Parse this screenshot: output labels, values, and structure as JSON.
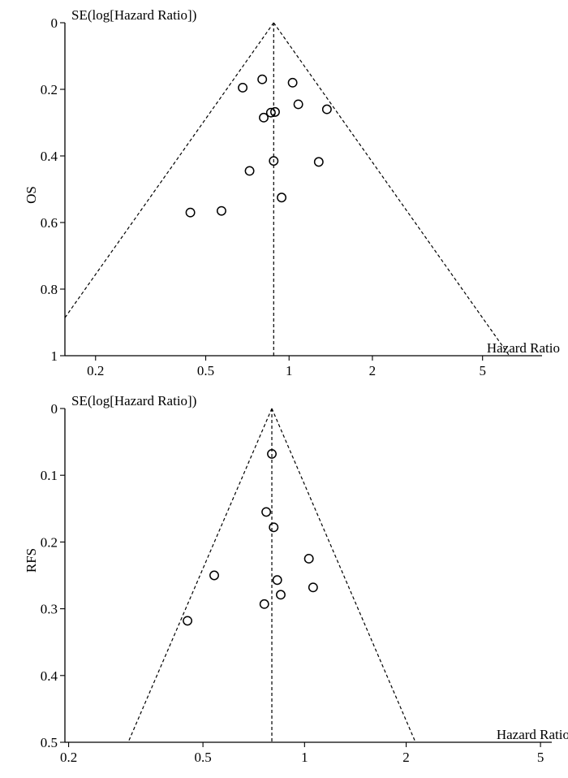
{
  "chart_data": [
    {
      "type": "scatter",
      "subtype": "funnel",
      "ylabel": "OS",
      "y_title": "SE(log[Hazard Ratio])",
      "x_title": "Hazard Ratio",
      "x_scale": "log",
      "x_ticks": [
        0.2,
        0.5,
        1,
        2,
        5
      ],
      "x_tick_labels": [
        "0.2",
        "0.5",
        "1",
        "2",
        "5"
      ],
      "xlim": [
        0.155,
        8.2
      ],
      "y_ticks": [
        0,
        0.2,
        0.4,
        0.6,
        0.8,
        1
      ],
      "y_tick_labels": [
        "0",
        "0.2",
        "0.4",
        "0.6",
        "0.8",
        "1"
      ],
      "ylim": [
        0,
        1
      ],
      "y_inverted": true,
      "pooled_hr": 0.88,
      "points": [
        {
          "x": 0.68,
          "y": 0.195
        },
        {
          "x": 0.8,
          "y": 0.17
        },
        {
          "x": 1.03,
          "y": 0.18
        },
        {
          "x": 1.08,
          "y": 0.245
        },
        {
          "x": 1.37,
          "y": 0.26
        },
        {
          "x": 0.81,
          "y": 0.285
        },
        {
          "x": 0.86,
          "y": 0.27
        },
        {
          "x": 0.89,
          "y": 0.268
        },
        {
          "x": 0.72,
          "y": 0.445
        },
        {
          "x": 0.88,
          "y": 0.415
        },
        {
          "x": 1.28,
          "y": 0.418
        },
        {
          "x": 0.94,
          "y": 0.525
        },
        {
          "x": 0.57,
          "y": 0.565
        },
        {
          "x": 0.44,
          "y": 0.57
        }
      ]
    },
    {
      "type": "scatter",
      "subtype": "funnel",
      "ylabel": "RFS",
      "y_title": "SE(log[Hazard Ratio])",
      "x_title": "Hazard Ratio",
      "x_scale": "log",
      "x_ticks": [
        0.2,
        0.5,
        1,
        2,
        5
      ],
      "x_tick_labels": [
        "0.2",
        "0.5",
        "1",
        "2",
        "5"
      ],
      "xlim": [
        0.195,
        5.4
      ],
      "y_ticks": [
        0,
        0.1,
        0.2,
        0.3,
        0.4,
        0.5
      ],
      "y_tick_labels": [
        "0",
        "0.1",
        "0.2",
        "0.3",
        "0.4",
        "0.5"
      ],
      "ylim": [
        0,
        0.5
      ],
      "y_inverted": true,
      "pooled_hr": 0.8,
      "points": [
        {
          "x": 0.8,
          "y": 0.068
        },
        {
          "x": 0.77,
          "y": 0.155
        },
        {
          "x": 0.81,
          "y": 0.178
        },
        {
          "x": 1.03,
          "y": 0.225
        },
        {
          "x": 0.54,
          "y": 0.25
        },
        {
          "x": 0.83,
          "y": 0.257
        },
        {
          "x": 1.06,
          "y": 0.268
        },
        {
          "x": 0.85,
          "y": 0.279
        },
        {
          "x": 0.76,
          "y": 0.293
        },
        {
          "x": 0.45,
          "y": 0.318
        }
      ]
    }
  ]
}
